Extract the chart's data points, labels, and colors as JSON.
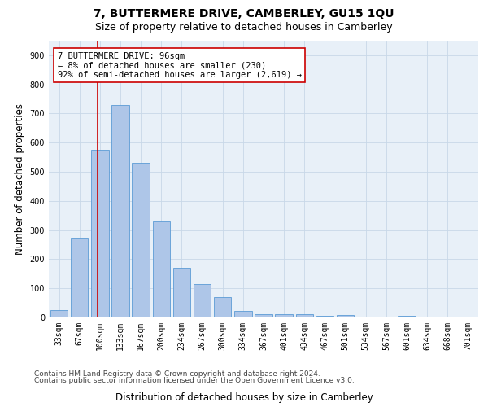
{
  "title": "7, BUTTERMERE DRIVE, CAMBERLEY, GU15 1QU",
  "subtitle": "Size of property relative to detached houses in Camberley",
  "xlabel": "Distribution of detached houses by size in Camberley",
  "ylabel": "Number of detached properties",
  "categories": [
    "33sqm",
    "67sqm",
    "100sqm",
    "133sqm",
    "167sqm",
    "200sqm",
    "234sqm",
    "267sqm",
    "300sqm",
    "334sqm",
    "367sqm",
    "401sqm",
    "434sqm",
    "467sqm",
    "501sqm",
    "534sqm",
    "567sqm",
    "601sqm",
    "634sqm",
    "668sqm",
    "701sqm"
  ],
  "values": [
    25,
    275,
    575,
    730,
    530,
    330,
    170,
    115,
    70,
    22,
    12,
    12,
    10,
    5,
    8,
    0,
    0,
    5,
    0,
    0,
    0
  ],
  "bar_color": "#aec6e8",
  "bar_edge_color": "#5b9bd5",
  "marker_color": "#cc0000",
  "annotation_line1": "7 BUTTERMERE DRIVE: 96sqm",
  "annotation_line2": "← 8% of detached houses are smaller (230)",
  "annotation_line3": "92% of semi-detached houses are larger (2,619) →",
  "annotation_box_color": "#ffffff",
  "annotation_box_edge_color": "#cc0000",
  "ylim": [
    0,
    950
  ],
  "yticks": [
    0,
    100,
    200,
    300,
    400,
    500,
    600,
    700,
    800,
    900
  ],
  "footer_line1": "Contains HM Land Registry data © Crown copyright and database right 2024.",
  "footer_line2": "Contains public sector information licensed under the Open Government Licence v3.0.",
  "bg_color": "#ffffff",
  "plot_bg_color": "#e8f0f8",
  "grid_color": "#c8d8e8",
  "title_fontsize": 10,
  "subtitle_fontsize": 9,
  "axis_label_fontsize": 8.5,
  "tick_fontsize": 7,
  "annotation_fontsize": 7.5,
  "footer_fontsize": 6.5
}
